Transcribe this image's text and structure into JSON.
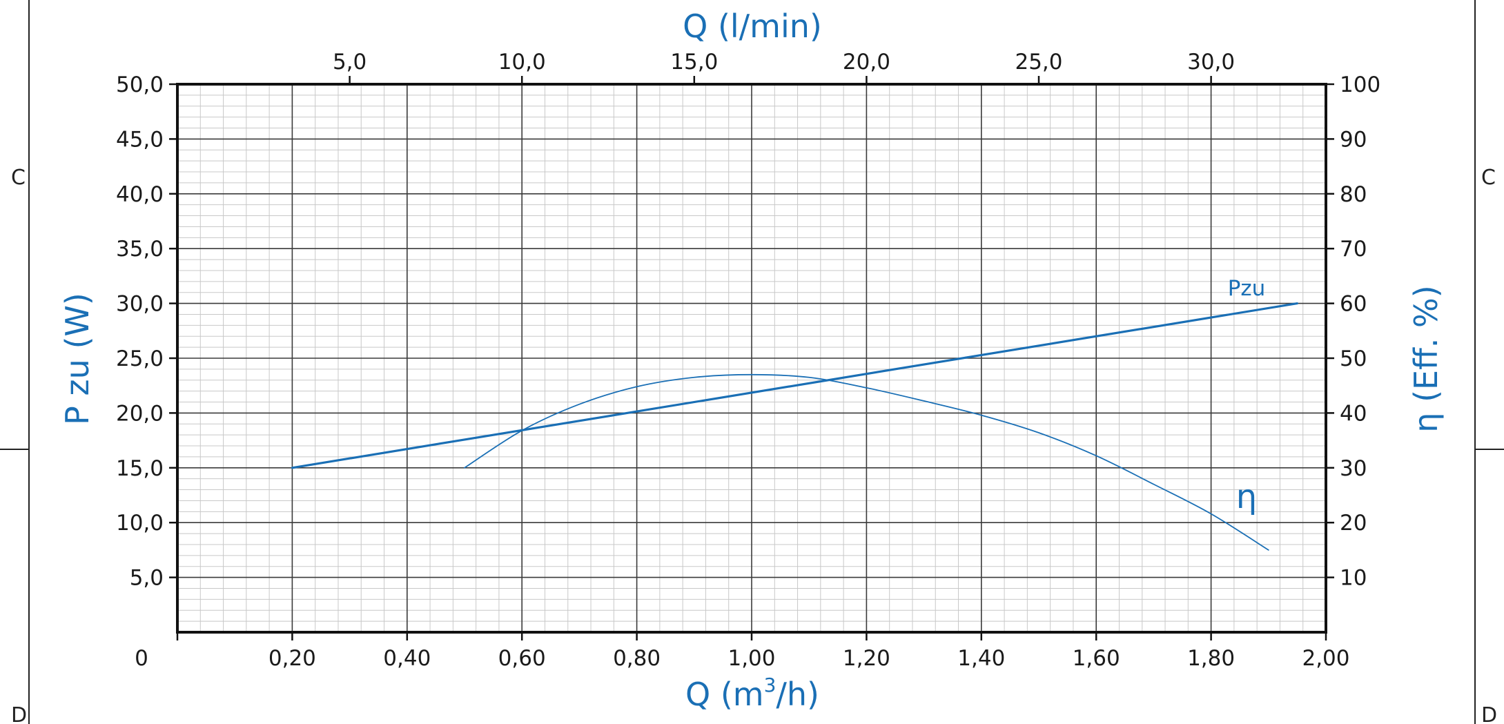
{
  "chart_data": {
    "type": "line",
    "top_axis": {
      "label": "Q (l/min)",
      "ticks": [
        "5,0",
        "10,0",
        "15,0",
        "20,0",
        "25,0",
        "30,0"
      ],
      "tick_values": [
        5,
        10,
        15,
        20,
        25,
        30
      ],
      "range": [
        0,
        33.333
      ]
    },
    "x_axis": {
      "label": "Q (m³/h)",
      "label_main": "Q (m",
      "label_sup": "3",
      "label_tail": "/h)",
      "ticks": [
        "0",
        "0,20",
        "0,40",
        "0,60",
        "0,80",
        "1,00",
        "1,20",
        "1,40",
        "1,60",
        "1,80",
        "2,00"
      ],
      "tick_values": [
        0,
        0.2,
        0.4,
        0.6,
        0.8,
        1.0,
        1.2,
        1.4,
        1.6,
        1.8,
        2.0
      ],
      "range": [
        0,
        2.0
      ]
    },
    "y_left": {
      "label": "P zu (W)",
      "ticks": [
        "5,0",
        "10,0",
        "15,0",
        "20,0",
        "25,0",
        "30,0",
        "35,0",
        "40,0",
        "45,0",
        "50,0"
      ],
      "tick_values": [
        5,
        10,
        15,
        20,
        25,
        30,
        35,
        40,
        45,
        50
      ],
      "range": [
        0,
        50
      ]
    },
    "y_right": {
      "label": "η (Eff. %)",
      "ticks": [
        "10",
        "20",
        "30",
        "40",
        "50",
        "60",
        "70",
        "80",
        "90",
        "100"
      ],
      "tick_values": [
        10,
        20,
        30,
        40,
        50,
        60,
        70,
        80,
        90,
        100
      ],
      "range": [
        0,
        100
      ]
    },
    "grid": true,
    "series": [
      {
        "name": "Pzu",
        "axis": "left",
        "x": [
          0.2,
          1.95
        ],
        "y": [
          15.0,
          30.0
        ]
      },
      {
        "name": "η",
        "axis": "right",
        "x": [
          0.5,
          0.6,
          0.7,
          0.8,
          0.9,
          1.0,
          1.1,
          1.2,
          1.3,
          1.4,
          1.5,
          1.6,
          1.7,
          1.8,
          1.9
        ],
        "y": [
          30.0,
          36.8,
          41.6,
          44.8,
          46.5,
          47.0,
          46.5,
          44.6,
          42.2,
          39.6,
          36.4,
          32.2,
          27.0,
          21.6,
          15.0
        ]
      }
    ],
    "colors": {
      "curve": "#1a6fb5",
      "grid_major": "#3a3a3a",
      "grid_minor": "#c8c8c8",
      "axis": "#111111"
    }
  },
  "frame_marks": [
    "C",
    "C",
    "D",
    "D"
  ]
}
